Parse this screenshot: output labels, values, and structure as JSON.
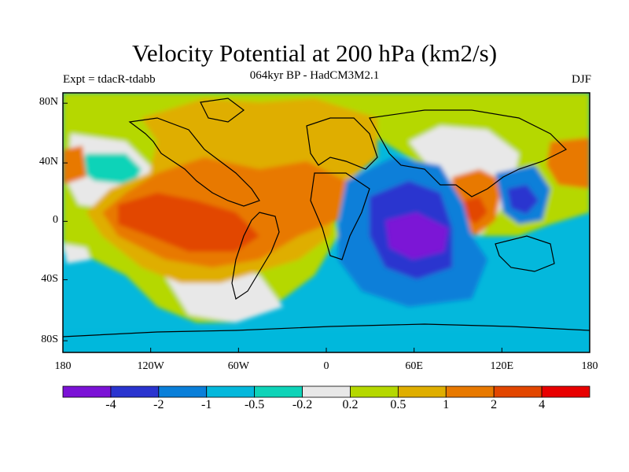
{
  "figure": {
    "title": "Velocity Potential at 200 hPa (km2/s)",
    "subtitle": "064kyr BP - HadCM3M2.1",
    "expt_label": "Expt = tdacR-tdabb",
    "season": "DJF"
  },
  "axes": {
    "lat_ticks": [
      "80N",
      "40N",
      "0",
      "40S",
      "80S"
    ],
    "lon_ticks": [
      "180",
      "120W",
      "60W",
      "0",
      "60E",
      "120E",
      "180"
    ]
  },
  "colorbar": {
    "colors": [
      "#7b12d6",
      "#2a34cf",
      "#0a7fd9",
      "#04b8dc",
      "#0ed3b8",
      "#e8e8e8",
      "#b5d800",
      "#dfae00",
      "#e87900",
      "#e24600",
      "#e80000"
    ],
    "labels": [
      "-4",
      "-2",
      "-1",
      "-0.5",
      "-0.2",
      "0.2",
      "0.5",
      "1",
      "2",
      "4"
    ]
  }
}
